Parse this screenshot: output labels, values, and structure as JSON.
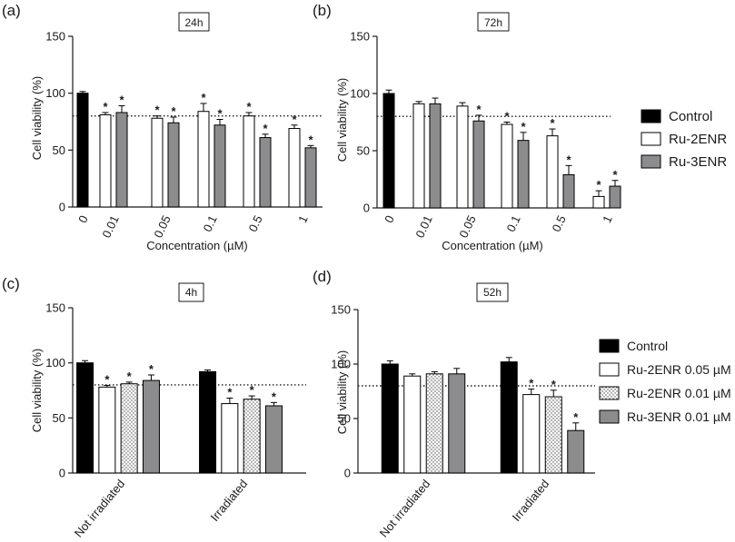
{
  "colors": {
    "control": "#000000",
    "ru2": "#ffffff",
    "ru3": "#8c8c8e",
    "dotted": "#cfcfcf",
    "axis": "#1a1a1a"
  },
  "legend_top": {
    "control": "Control",
    "ru2": "Ru-2ENR",
    "ru3": "Ru-3ENR"
  },
  "legend_bottom": {
    "control": "Control",
    "ru2a": "Ru-2ENR 0.05 µM",
    "ru2b": "Ru-2ENR 0.01 µM",
    "ru3": "Ru-3ENR 0.01 µM"
  },
  "chart_data": [
    {
      "panel": "(a)",
      "title": "24h",
      "type": "bar",
      "xlabel": "Concentration (µM)",
      "ylabel": "Cell viability (%)",
      "ylim": [
        0,
        150
      ],
      "yticks": [
        "0",
        "50",
        "100",
        "150"
      ],
      "threshold": 80,
      "categories": [
        "0",
        "0.01",
        "0.05",
        "0.1",
        "0.5",
        "1"
      ],
      "series": [
        {
          "name": "Control",
          "values": [
            100,
            null,
            null,
            null,
            null,
            null
          ],
          "errors": [
            1.5,
            null,
            null,
            null,
            null,
            null
          ],
          "sig": [
            false,
            false,
            false,
            false,
            false,
            false
          ]
        },
        {
          "name": "Ru-2ENR",
          "values": [
            null,
            81,
            78,
            84,
            80,
            69
          ],
          "errors": [
            null,
            2,
            2,
            7,
            3,
            3
          ],
          "sig": [
            false,
            true,
            true,
            true,
            true,
            true
          ]
        },
        {
          "name": "Ru-3ENR",
          "values": [
            null,
            83,
            74,
            72,
            61,
            52
          ],
          "errors": [
            null,
            6,
            5,
            5,
            3,
            2
          ],
          "sig": [
            false,
            true,
            true,
            true,
            true,
            true
          ]
        }
      ]
    },
    {
      "panel": "(b)",
      "title": "72h",
      "type": "bar",
      "xlabel": "Concentration (µM)",
      "ylabel": "Cell viability (%)",
      "ylim": [
        0,
        150
      ],
      "yticks": [
        "0",
        "50",
        "100",
        "150"
      ],
      "threshold": 80,
      "categories": [
        "0",
        "0.01",
        "0.05",
        "0.1",
        "0.5",
        "1"
      ],
      "series": [
        {
          "name": "Control",
          "values": [
            100,
            null,
            null,
            null,
            null,
            null
          ],
          "errors": [
            3,
            null,
            null,
            null,
            null,
            null
          ],
          "sig": [
            false,
            false,
            false,
            false,
            false,
            false
          ]
        },
        {
          "name": "Ru-2ENR",
          "values": [
            null,
            91,
            89,
            73,
            63,
            10
          ],
          "errors": [
            null,
            2,
            3,
            2,
            6,
            5
          ],
          "sig": [
            false,
            false,
            false,
            true,
            true,
            true
          ]
        },
        {
          "name": "Ru-3ENR",
          "values": [
            null,
            91,
            76,
            59,
            29,
            19
          ],
          "errors": [
            null,
            5,
            5,
            7,
            8,
            5
          ],
          "sig": [
            false,
            false,
            true,
            true,
            true,
            true
          ]
        }
      ]
    },
    {
      "panel": "(c)",
      "title": "4h",
      "type": "bar",
      "ylabel": "Cell viability (%)",
      "ylim": [
        0,
        150
      ],
      "yticks": [
        "0",
        "50",
        "100",
        "150"
      ],
      "threshold": 80,
      "categories": [
        "Not irradiated",
        "Irradiated"
      ],
      "series": [
        {
          "name": "Control",
          "values": [
            100,
            92
          ],
          "errors": [
            2,
            1.5
          ],
          "sig": [
            false,
            false
          ]
        },
        {
          "name": "Ru-2ENR 0.05 µM",
          "values": [
            78,
            63
          ],
          "errors": [
            1.5,
            5
          ],
          "sig": [
            true,
            true
          ]
        },
        {
          "name": "Ru-2ENR 0.01 µM",
          "values": [
            81,
            67
          ],
          "errors": [
            1.5,
            3
          ],
          "sig": [
            true,
            true
          ]
        },
        {
          "name": "Ru-3ENR 0.01 µM",
          "values": [
            84,
            61
          ],
          "errors": [
            5,
            3
          ],
          "sig": [
            true,
            true
          ]
        }
      ]
    },
    {
      "panel": "(d)",
      "title": "52h",
      "type": "bar",
      "ylabel": "Cell viability (%)",
      "ylim": [
        0,
        150
      ],
      "yticks": [
        "0",
        "50",
        "100",
        "150"
      ],
      "threshold": 80,
      "categories": [
        "Not irradiated",
        "Irradiated"
      ],
      "series": [
        {
          "name": "Control",
          "values": [
            100,
            102
          ],
          "errors": [
            3,
            4
          ],
          "sig": [
            false,
            false
          ]
        },
        {
          "name": "Ru-2ENR 0.05 µM",
          "values": [
            89,
            72
          ],
          "errors": [
            2,
            5
          ],
          "sig": [
            false,
            true
          ]
        },
        {
          "name": "Ru-2ENR 0.01 µM",
          "values": [
            91,
            70
          ],
          "errors": [
            2,
            6
          ],
          "sig": [
            false,
            true
          ]
        },
        {
          "name": "Ru-3ENR 0.01 µM",
          "values": [
            91,
            39
          ],
          "errors": [
            5,
            7
          ],
          "sig": [
            false,
            true
          ]
        }
      ]
    }
  ]
}
